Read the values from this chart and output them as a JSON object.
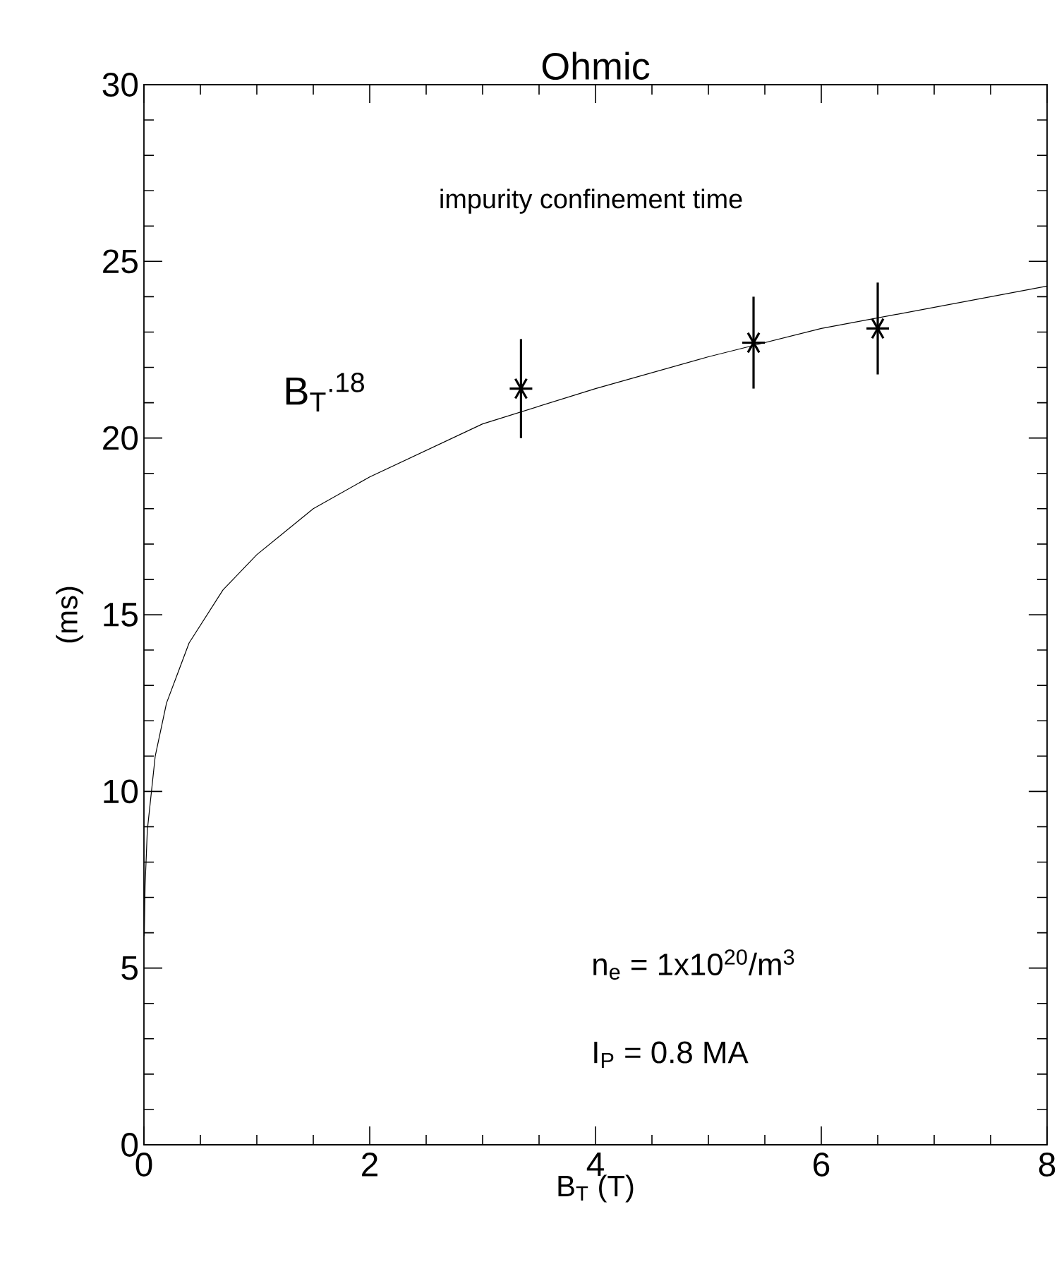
{
  "chart_data": {
    "type": "scatter",
    "title": "Ohmic",
    "xlabel": "B$_{T}$ (T)",
    "ylabel": "(ms)",
    "xlim": [
      0,
      8
    ],
    "ylim": [
      0,
      30
    ],
    "xticks": [
      0,
      2,
      4,
      6,
      8
    ],
    "yticks": [
      0,
      5,
      10,
      15,
      20,
      25,
      30
    ],
    "grid": false,
    "series": [
      {
        "color": "#000000",
        "marker": "cross",
        "x": [
          3.34,
          5.4,
          6.5
        ],
        "values": [
          21.4,
          22.7,
          23.1
        ],
        "errors": [
          1.4,
          1.3,
          1.3
        ]
      },
      {
        "type": "line",
        "color": "#000000",
        "marker": "none",
        "line_style": "solid",
        "x": [
          0.003,
          0.01,
          0.03,
          0.1,
          0.2,
          0.4,
          0.7,
          1,
          1.5,
          2,
          3,
          4,
          5,
          6,
          7,
          8
        ],
        "values": [
          5.9,
          7.3,
          8.9,
          11.0,
          12.5,
          14.2,
          15.7,
          16.7,
          18.0,
          18.9,
          20.4,
          21.4,
          22.3,
          23.1,
          23.7,
          24.3
        ]
      }
    ],
    "annotations": [
      "impurity confinement time",
      "n$_{e}$ = 1x10$^{20}$/m$^{3}$",
      "I$_{P}$ = 0.8 MA",
      "B$_{T}$$^{.18}$"
    ]
  }
}
